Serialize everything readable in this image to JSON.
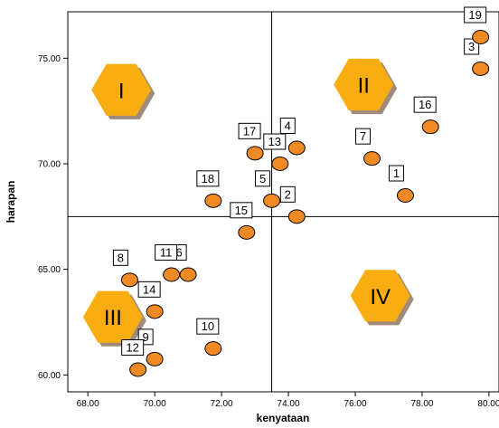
{
  "chart_data": {
    "type": "scatter",
    "xlabel": "kenyataan",
    "ylabel": "harapan",
    "xlim": [
      67.4,
      80.3
    ],
    "ylim": [
      59.2,
      77.2
    ],
    "x_ticks": [
      "68.00",
      "70.00",
      "72.00",
      "74.00",
      "76.00",
      "78.00",
      "80.00"
    ],
    "y_ticks": [
      "60.00",
      "65.00",
      "70.00",
      "75.00"
    ],
    "x_tick_values": [
      68,
      70,
      72,
      74,
      76,
      78,
      80
    ],
    "y_tick_values": [
      60,
      65,
      70,
      75
    ],
    "mean_x": 73.5,
    "mean_y": 67.5,
    "grid": false,
    "marker_color": "#f08a24",
    "quadrant_color": "#f8ae10",
    "points": [
      {
        "label": "1",
        "x": 77.5,
        "y": 68.5
      },
      {
        "label": "2",
        "x": 74.25,
        "y": 67.5
      },
      {
        "label": "3",
        "x": 79.75,
        "y": 74.5
      },
      {
        "label": "4",
        "x": 74.25,
        "y": 70.75
      },
      {
        "label": "5",
        "x": 73.5,
        "y": 68.25
      },
      {
        "label": "6",
        "x": 71.0,
        "y": 64.75
      },
      {
        "label": "7",
        "x": 76.5,
        "y": 70.25
      },
      {
        "label": "8",
        "x": 69.25,
        "y": 64.5
      },
      {
        "label": "9",
        "x": 70.0,
        "y": 60.75
      },
      {
        "label": "10",
        "x": 71.75,
        "y": 61.25
      },
      {
        "label": "11",
        "x": 70.5,
        "y": 64.75
      },
      {
        "label": "12",
        "x": 69.5,
        "y": 60.25
      },
      {
        "label": "13",
        "x": 73.75,
        "y": 70.0
      },
      {
        "label": "14",
        "x": 70.0,
        "y": 63.0
      },
      {
        "label": "15",
        "x": 72.75,
        "y": 66.75
      },
      {
        "label": "16",
        "x": 78.25,
        "y": 71.75
      },
      {
        "label": "17",
        "x": 73.0,
        "y": 70.5
      },
      {
        "label": "18",
        "x": 71.75,
        "y": 68.25
      },
      {
        "label": "19",
        "x": 79.75,
        "y": 76.0
      }
    ],
    "quadrants": [
      {
        "label": "I",
        "x": 69.0,
        "y": 73.5
      },
      {
        "label": "II",
        "x": 76.25,
        "y": 73.75
      },
      {
        "label": "III",
        "x": 68.75,
        "y": 62.75
      },
      {
        "label": "IV",
        "x": 76.75,
        "y": 63.75
      }
    ]
  }
}
